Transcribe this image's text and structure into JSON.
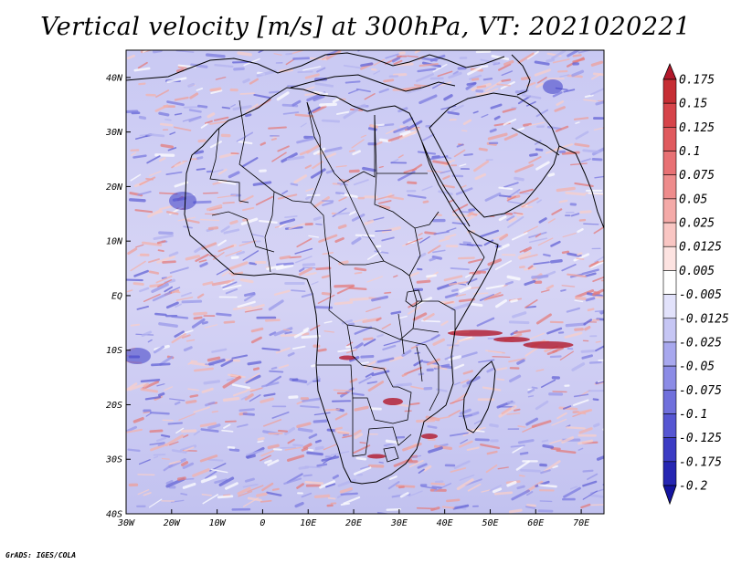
{
  "title": "Vertical velocity [m/s] at 300hPa, VT: 2021020221",
  "credit": "GrADS: IGES/COLA",
  "map": {
    "lon_range": [
      -30,
      75
    ],
    "lat_range": [
      -40,
      45
    ],
    "lon_ticks": [
      "30W",
      "20W",
      "10W",
      "0",
      "10E",
      "20E",
      "30E",
      "40E",
      "50E",
      "60E",
      "70E"
    ],
    "lat_ticks": [
      "40N",
      "30N",
      "20N",
      "10N",
      "EQ",
      "10S",
      "20S",
      "30S",
      "40S"
    ]
  },
  "colorbar": {
    "labels": [
      "0.175",
      "0.15",
      "0.125",
      "0.1",
      "0.075",
      "0.05",
      "0.025",
      "0.0125",
      "0.005",
      "-0.005",
      "-0.0125",
      "-0.025",
      "-0.05",
      "-0.075",
      "-0.1",
      "-0.125",
      "-0.175",
      "-0.2"
    ],
    "colors": [
      "#b2182b",
      "#c62e34",
      "#d6444a",
      "#e05a5e",
      "#e87174",
      "#ee8c8c",
      "#f4aaa8",
      "#f9c6c3",
      "#fde3e1",
      "#ffffff",
      "#e2e2fb",
      "#c6c6f4",
      "#a8a8ee",
      "#8c8ce6",
      "#7070dc",
      "#5656d2",
      "#3c3cc4",
      "#2626b2",
      "#1414a0"
    ]
  }
}
